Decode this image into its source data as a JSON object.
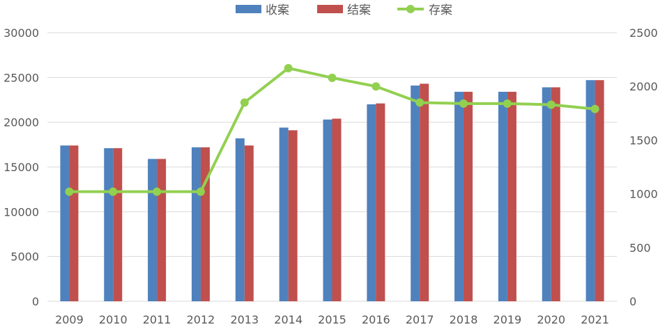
{
  "chart_data": {
    "type": "bar",
    "categories": [
      "2009",
      "2010",
      "2011",
      "2012",
      "2013",
      "2014",
      "2015",
      "2016",
      "2017",
      "2018",
      "2019",
      "2020",
      "2021"
    ],
    "series": [
      {
        "name": "收案",
        "type": "bar",
        "axis": "left",
        "color": "#4F81BD",
        "values": [
          17400,
          17100,
          15900,
          17200,
          18200,
          19400,
          20300,
          22000,
          24100,
          23400,
          23400,
          23900,
          24700
        ]
      },
      {
        "name": "结案",
        "type": "bar",
        "axis": "left",
        "color": "#C0504D",
        "values": [
          17400,
          17100,
          15900,
          17200,
          17400,
          19100,
          20400,
          22100,
          24300,
          23400,
          23400,
          23900,
          24700
        ]
      },
      {
        "name": "存案",
        "type": "line",
        "axis": "right",
        "color": "#92D050",
        "values": [
          1020,
          1020,
          1020,
          1020,
          1850,
          2170,
          2080,
          2000,
          1850,
          1840,
          1840,
          1830,
          1790
        ]
      }
    ],
    "y_left": {
      "min": 0,
      "max": 30000,
      "ticks": [
        "0",
        "5000",
        "10000",
        "15000",
        "20000",
        "25000",
        "30000"
      ]
    },
    "y_right": {
      "min": 0,
      "max": 2500,
      "ticks": [
        "0",
        "500",
        "1000",
        "1500",
        "2000",
        "2500"
      ]
    },
    "grid": true,
    "legend_position": "top-center"
  }
}
